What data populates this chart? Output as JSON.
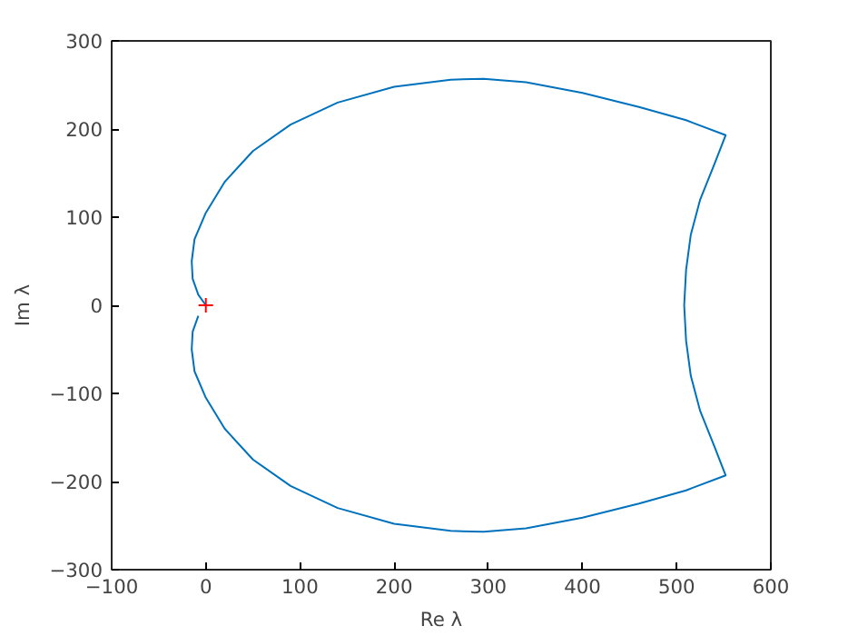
{
  "chart_data": {
    "type": "line",
    "xlabel": "Re λ",
    "ylabel": "Im λ",
    "xlim": [
      -100,
      600
    ],
    "ylim": [
      -300,
      300
    ],
    "xticks": [
      -100,
      0,
      100,
      200,
      300,
      400,
      500,
      600
    ],
    "yticks": [
      -300,
      -200,
      -100,
      0,
      100,
      200,
      300
    ],
    "grid": false,
    "series": [
      {
        "color": "#0072bd",
        "line_style": "solid",
        "x": [
          0,
          -8,
          -14,
          -15,
          -12,
          0,
          20,
          50,
          90,
          140,
          200,
          260,
          295,
          340,
          400,
          460,
          510,
          552,
          540,
          525,
          515,
          510,
          508,
          510,
          515,
          525,
          540,
          552,
          510,
          460,
          400,
          340,
          295,
          260,
          200,
          140,
          90,
          50,
          20,
          0,
          -12,
          -15,
          -14,
          -8
        ],
        "values": [
          0,
          12,
          30,
          50,
          75,
          105,
          140,
          175,
          205,
          230,
          248,
          256,
          257,
          253,
          241,
          225,
          210,
          193,
          160,
          120,
          80,
          40,
          0,
          -40,
          -80,
          -120,
          -160,
          -193,
          -210,
          -225,
          -241,
          -253,
          -257,
          -256,
          -248,
          -230,
          -205,
          -175,
          -140,
          -105,
          -75,
          -50,
          -30,
          -12
        ]
      },
      {
        "type": "scatter",
        "color": "#ff0000",
        "marker": "cross",
        "x": [
          0
        ],
        "values": [
          0
        ]
      }
    ]
  }
}
